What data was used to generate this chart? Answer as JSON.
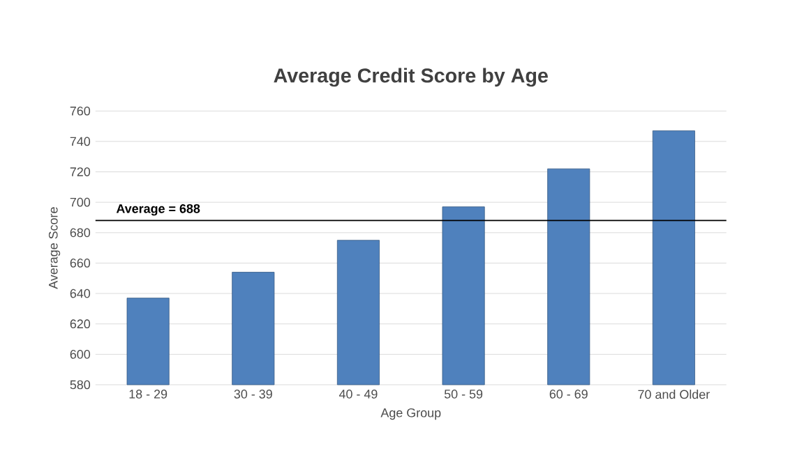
{
  "chart_data": {
    "type": "bar",
    "title": "Average Credit Score by Age",
    "xlabel": "Age Group",
    "ylabel": "Average Score",
    "categories": [
      "18 - 29",
      "30 - 39",
      "40 - 49",
      "50 - 59",
      "60 - 69",
      "70 and Older"
    ],
    "values": [
      637,
      654,
      675,
      697,
      722,
      747
    ],
    "color": "#4f81bd",
    "ylim": [
      580,
      760
    ],
    "yticks": [
      580,
      600,
      620,
      640,
      660,
      680,
      700,
      720,
      740,
      760
    ],
    "grid": "y",
    "ref_lines": [
      {
        "axis": "y",
        "value": 688,
        "label": "Average = 688",
        "color": "#000000"
      }
    ]
  }
}
